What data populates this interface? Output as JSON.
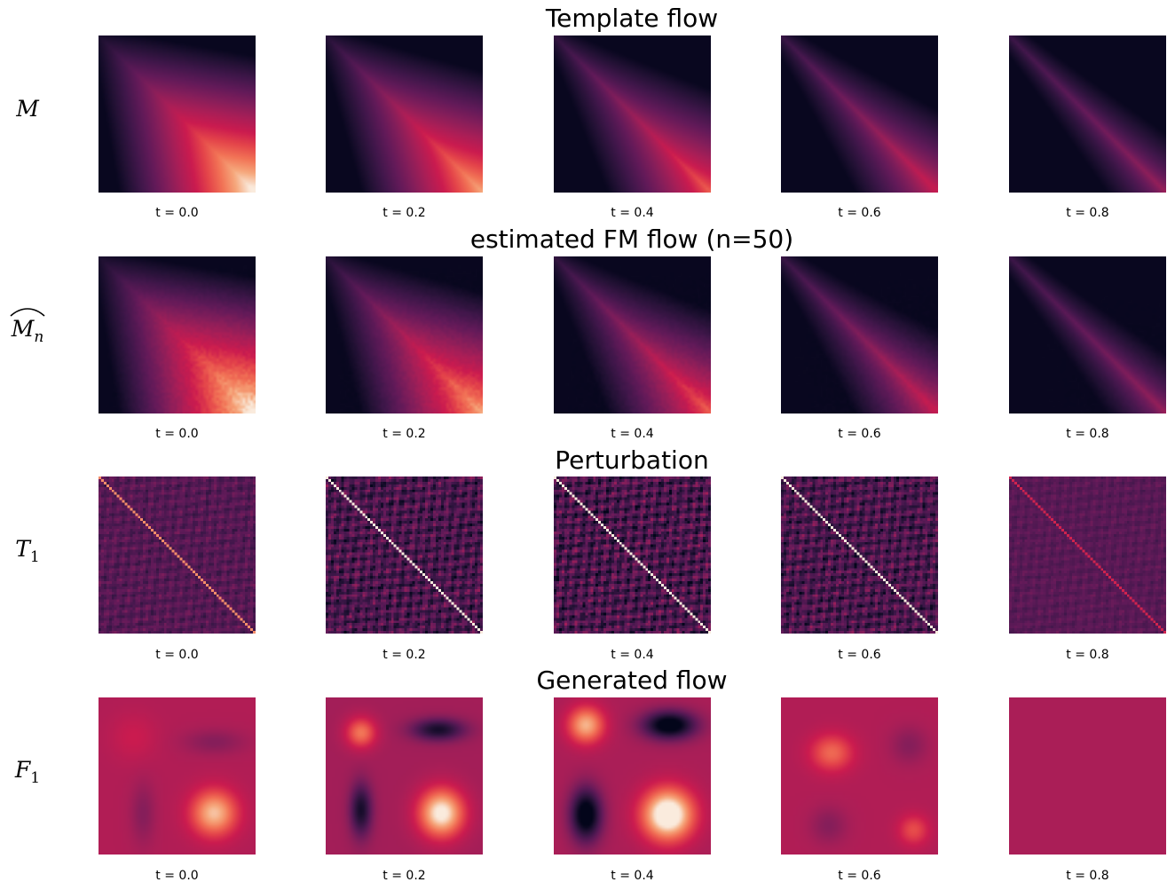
{
  "colormap": "rocket",
  "rows": [
    {
      "id": "template",
      "title": "Template flow",
      "label_symbol": "M",
      "label_style": "calligraphic",
      "label_subscript": "",
      "label_hat": false,
      "panel_labels": [
        "t = 0.0",
        "t = 0.2",
        "t = 0.4",
        "t = 0.6",
        "t = 0.8"
      ]
    },
    {
      "id": "estimated",
      "title": "estimated FM flow (n=50)",
      "label_symbol": "M",
      "label_style": "calligraphic",
      "label_subscript": "n",
      "label_hat": true,
      "panel_labels": [
        "t = 0.0",
        "t = 0.2",
        "t = 0.4",
        "t = 0.6",
        "t = 0.8"
      ]
    },
    {
      "id": "perturbation",
      "title": "Perturbation",
      "label_symbol": "T",
      "label_style": "italic",
      "label_subscript": "1",
      "label_hat": false,
      "panel_labels": [
        "t = 0.0",
        "t = 0.2",
        "t = 0.4",
        "t = 0.6",
        "t = 0.8"
      ]
    },
    {
      "id": "generated",
      "title": "Generated flow",
      "label_symbol": "F",
      "label_style": "calligraphic",
      "label_subscript": "1",
      "label_hat": false,
      "panel_labels": [
        "t = 0.0",
        "t = 0.2",
        "t = 0.4",
        "t = 0.6",
        "t = 0.8"
      ]
    }
  ],
  "chart_data": {
    "type": "heatmap",
    "grid_shape": [
      4,
      5
    ],
    "times": [
      0.0,
      0.2,
      0.4,
      0.6,
      0.8
    ],
    "legend": "none",
    "axes_visible": false,
    "description_of_values": "Each panel is a square covariance-like heatmap rendered with the rocket colormap; no numeric color scale is shown."
  }
}
